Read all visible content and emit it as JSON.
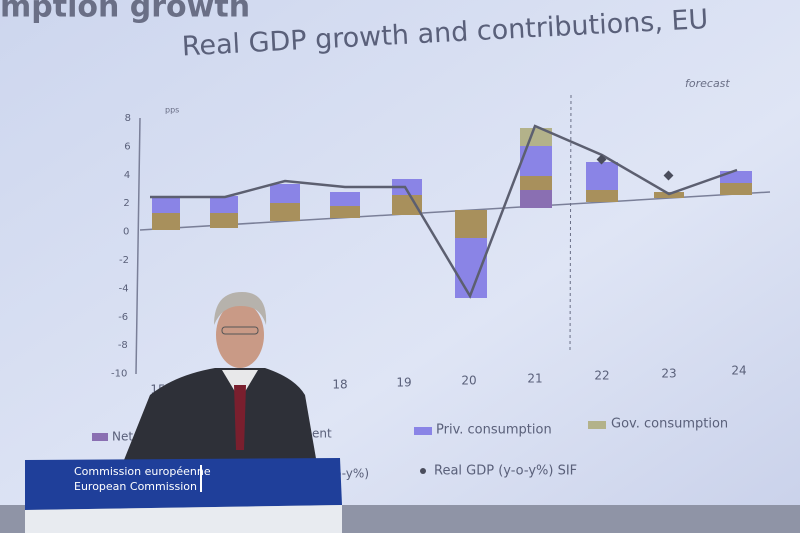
{
  "slide": {
    "heading_fragment": "mption growth",
    "title": "Real GDP growth and contributions, EU",
    "forecast_label": "forecast",
    "unit_label": "pps",
    "y_axis_labels": [
      8,
      6,
      4,
      2,
      0,
      -2,
      -4,
      -6,
      -8,
      -10
    ],
    "x_axis_labels": [
      "15",
      "18",
      "19",
      "20",
      "21",
      "22",
      "23",
      "24"
    ],
    "legend": [
      "Net",
      "ent",
      "Priv. consumption",
      "Gov. consumption",
      "(y-o-y%)",
      "Real GDP (y-o-y%) SIF"
    ]
  },
  "podium": {
    "line1": "Commission européenne",
    "line2": "European Commission"
  }
}
